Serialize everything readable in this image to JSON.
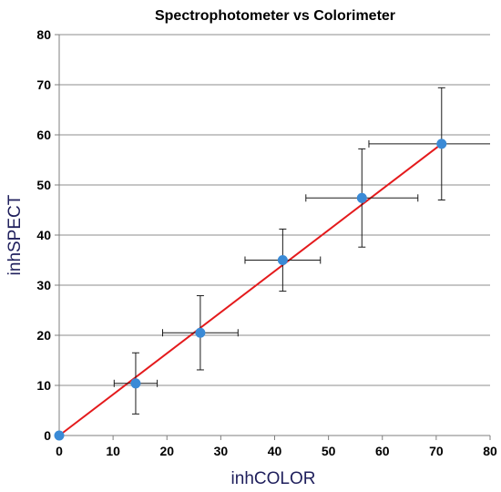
{
  "chart_data": {
    "type": "scatter",
    "title": "Spectrophotometer vs Colorimeter",
    "xlabel": "inhCOLOR",
    "ylabel": "inhSPECT",
    "xlim": [
      0,
      80
    ],
    "ylim": [
      0,
      80
    ],
    "xticks": [
      0,
      10,
      20,
      30,
      40,
      50,
      60,
      70,
      80
    ],
    "yticks": [
      0,
      10,
      20,
      30,
      40,
      50,
      60,
      70,
      80
    ],
    "grid": {
      "horizontal": true,
      "vertical": false
    },
    "legend": "none",
    "series": [
      {
        "points": [
          {
            "x": 0,
            "y": 0,
            "xerr": 0,
            "yerr": 0
          },
          {
            "x": 14.2,
            "y": 10.4,
            "xerr": 4.0,
            "yerr": 6.1
          },
          {
            "x": 26.2,
            "y": 20.5,
            "xerr": 7.0,
            "yerr": 7.4
          },
          {
            "x": 41.5,
            "y": 35.0,
            "xerr": 7.0,
            "yerr": 6.2
          },
          {
            "x": 56.2,
            "y": 47.4,
            "xerr": 10.4,
            "yerr": 9.8
          },
          {
            "x": 71.0,
            "y": 58.2,
            "xerr": 13.5,
            "yerr": 11.2
          }
        ]
      }
    ],
    "fit_line": {
      "x": [
        0,
        71
      ],
      "y": [
        0,
        58.2
      ]
    }
  },
  "colors": {
    "marker": "#3a8ad6",
    "fit_line": "#e41a1c",
    "error_bar": "#1a1a1a",
    "grid": "#8c8c8c",
    "axis": "#7f7f7f",
    "axis_label": "#1f1f5c"
  }
}
